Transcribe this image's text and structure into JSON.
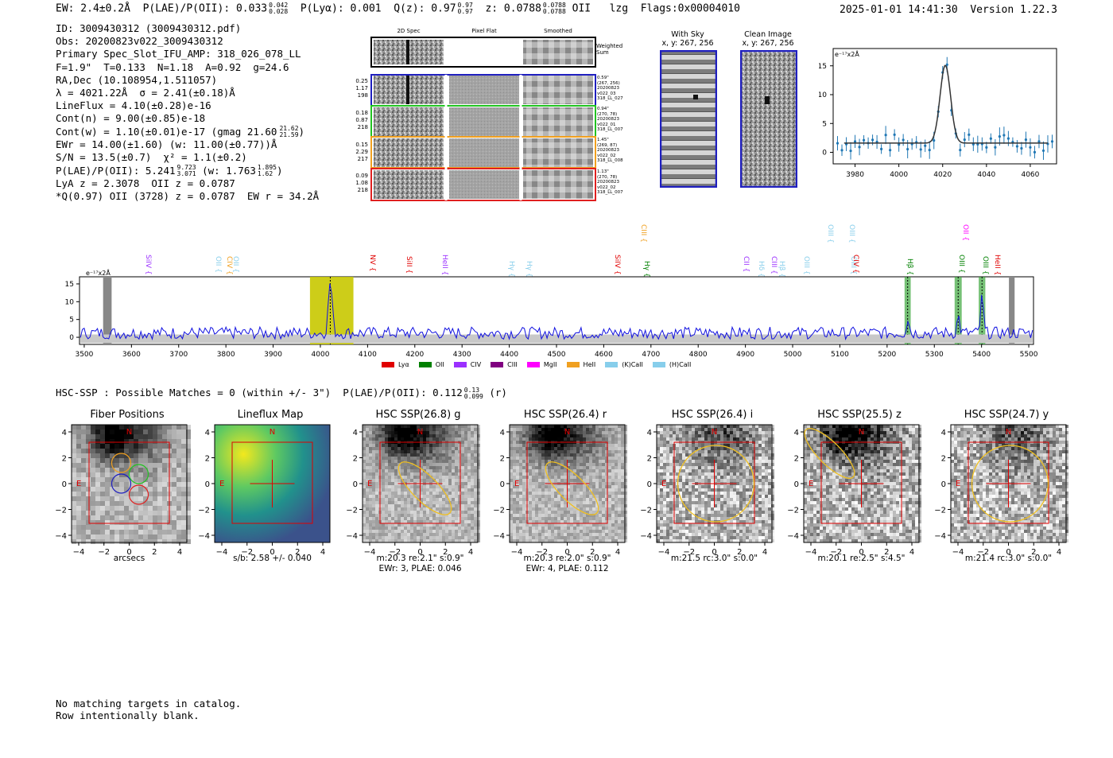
{
  "header": {
    "left": "EW: 2.4±0.2Å  P(LAE)/P(OII): 0.033",
    "plae_sup": "0.042",
    "plae_sub": "0.028",
    "mid": "  P(Lyα): 0.001  Q(z): 0.97",
    "q_sup": "0.97",
    "q_sub": "0.97",
    "z_text": "  z: 0.0788",
    "z_sup": "0.0788",
    "z_sub": "0.0788",
    "tail": " OII   lzg  Flags:0x00004010",
    "datetime": "2025-01-01 14:41:30  Version 1.22.3"
  },
  "info": {
    "line1": "ID: 3009430312 (3009430312.pdf)",
    "line2": "Obs: 20200823v022_3009430312",
    "line3": "Primary Spec_Slot_IFU_AMP: 318_026_078_LL",
    "line4": "F=1.9\"  T=0.133  N=1.18  A=0.92  g=24.6",
    "line5": "RA,Dec (10.108954,1.511057)",
    "line6": "λ = 4021.22Å  σ = 2.41(±0.18)Å",
    "line7": "LineFlux = 4.10(±0.28)e-16",
    "line8": "Cont(n) = 9.00(±0.85)e-18",
    "line9": "Cont(w) = 1.10(±0.01)e-17 (gmag 21.60",
    "line9_sup": "21.62",
    "line9_sub": "21.59",
    "line10": "EWr = 14.00(±1.60) (w: 11.00(±0.77))Å",
    "line11": "S/N = 13.5(±0.7)  χ² = 1.1(±0.2)",
    "line12": "P(LAE)/P(OII): 5.241",
    "line12_sup": "9.723",
    "line12_sub": "3.071",
    "line12b": " (w: 1.763",
    "line12b_sup": "1.895",
    "line12b_sub": "1.62",
    "line13": "LyA z = 2.3078  OII z = 0.0787",
    "line14": "*Q(0.97) OII (3728) z = 0.0787  EW r = 34.2Å"
  },
  "spec2d": {
    "col_headers": [
      "2D Spec",
      "Pixel Flat",
      "Smoothed"
    ],
    "weighted_label": "Weighted\nSum",
    "rows": [
      {
        "nums": "0.25\n1.17\n198",
        "meta": "0.59\"\n(267, 256)\n20200823\nv022_03\n318_LL_027",
        "color": "#1f1fbf"
      },
      {
        "nums": "0.18\n0.87\n218",
        "meta": "0.94\"\n(270, 78)\n20200823\nv022_01\n318_LL_007",
        "color": "#22c322"
      },
      {
        "nums": "0.15\n2.29\n217",
        "meta": "1.45\"\n(269, 87)\n20200823\nv022_02\n318_LL_008",
        "color": "#f0a020"
      },
      {
        "nums": "0.09\n1.08\n218",
        "meta": "1.13\"\n(270, 78)\n20200823\nv022_02\n318_LL_007",
        "color": "#e02020"
      }
    ]
  },
  "sky": {
    "with_sky": "With Sky",
    "with_sky_xy": "x, y: 267, 256",
    "clean": "Clean Image",
    "clean_xy": "x, y: 267, 256"
  },
  "zoom_plot": {
    "unit_label": "e⁻¹⁷x2Å",
    "x_ticks": [
      "3980",
      "4000",
      "4020",
      "4040",
      "4060"
    ],
    "y_ticks": [
      "0",
      "5",
      "10",
      "15"
    ]
  },
  "full_spectrum": {
    "unit_label": "e⁻¹⁷x2Å",
    "x_ticks": [
      "3500",
      "3600",
      "3700",
      "3800",
      "3900",
      "4000",
      "4100",
      "4200",
      "4300",
      "4400",
      "4500",
      "4600",
      "4700",
      "4800",
      "4900",
      "5000",
      "5100",
      "5200",
      "5300",
      "5400",
      "5500"
    ],
    "y_ticks": [
      "0",
      "5",
      "10",
      "15"
    ],
    "line_labels": [
      {
        "label": "SiIV {",
        "color": "#9b30ff"
      },
      {
        "label": "OII {",
        "color": "#87ceeb"
      },
      {
        "label": "CIV {",
        "color": "#f0a020"
      },
      {
        "label": "OII {",
        "color": "#87ceeb"
      },
      {
        "label": "NV {",
        "color": "#e00000"
      },
      {
        "label": "SiII {",
        "color": "#e00000"
      },
      {
        "label": "HeII {",
        "color": "#9b30ff"
      },
      {
        "label": "Hγ {",
        "color": "#87ceeb"
      },
      {
        "label": "Hγ {",
        "color": "#87ceeb"
      },
      {
        "label": "SiIV {",
        "color": "#e00000"
      },
      {
        "label": "CIII {",
        "color": "#f0a020"
      },
      {
        "label": "Hγ {",
        "color": "#008000"
      },
      {
        "label": "CII {",
        "color": "#9b30ff"
      },
      {
        "label": "Hδ {",
        "color": "#87ceeb"
      },
      {
        "label": "CIII {",
        "color": "#9b30ff"
      },
      {
        "label": "Hβ {",
        "color": "#87ceeb"
      },
      {
        "label": "OIII {",
        "color": "#87ceeb"
      },
      {
        "label": "OIII {",
        "color": "#87ceeb"
      },
      {
        "label": "OIII {",
        "color": "#87ceeb"
      },
      {
        "label": "OIII {",
        "color": "#87ceeb"
      },
      {
        "label": "CIV {",
        "color": "#e00000"
      },
      {
        "label": "Hβ {",
        "color": "#008000"
      },
      {
        "label": "OIII {",
        "color": "#008000"
      },
      {
        "label": "OII {",
        "color": "#ff00ff"
      },
      {
        "label": "OIII {",
        "color": "#008000"
      },
      {
        "label": "HeII {",
        "color": "#e00000"
      }
    ],
    "legend": [
      {
        "label": "Lyα",
        "color": "#e00000"
      },
      {
        "label": "OII",
        "color": "#008000"
      },
      {
        "label": "CIV",
        "color": "#9b30ff"
      },
      {
        "label": "CIII",
        "color": "#800080"
      },
      {
        "label": "MgII",
        "color": "#ff00ff"
      },
      {
        "label": "HeII",
        "color": "#f0a020"
      },
      {
        "label": "(K)CaII",
        "color": "#87ceeb"
      },
      {
        "label": "(H)CaII",
        "color": "#87ceeb"
      }
    ]
  },
  "hsc": {
    "summary": "HSC-SSP : Possible Matches = 0 (within +/- 3\")  P(LAE)/P(OII): 0.112",
    "summary_sup": "0.13",
    "summary_sub": "0.099",
    "summary_tail": " (r)",
    "axis_ticks_x": [
      "−4",
      "−2",
      "0",
      "2",
      "4"
    ],
    "axis_ticks_y": [
      "4",
      "2",
      "0",
      "−2",
      "−4"
    ],
    "panels": [
      {
        "title": "Fiber Positions",
        "caption": "arcsecs"
      },
      {
        "title": "Lineflux Map",
        "caption": "s/b: 2.58 +/- 0.040"
      },
      {
        "title": "HSC SSP(26.8) g",
        "caption": "m:20.3  re:2.1\"  s:0.9\"",
        "caption2": "EWr: 3, PLAE: 0.046"
      },
      {
        "title": "HSC SSP(26.4) r",
        "caption": "m:20.3  re:2.0\"  s:0.9\"",
        "caption2": "EWr: 4, PLAE: 0.112"
      },
      {
        "title": "HSC SSP(26.4) i",
        "caption": "m:21.5 rc:3.0\"  s:0.0\""
      },
      {
        "title": "HSC SSP(25.5) z",
        "caption": "m:20.1  re:2.5\"  s:4.5\""
      },
      {
        "title": "HSC SSP(24.7) y",
        "caption": "m:21.4 rc:3.0\"  s:0.0\""
      }
    ],
    "compass_n": "N",
    "compass_e": "E"
  },
  "footer": {
    "line1": "No matching targets in catalog.",
    "line2": "Row intentionally blank."
  }
}
